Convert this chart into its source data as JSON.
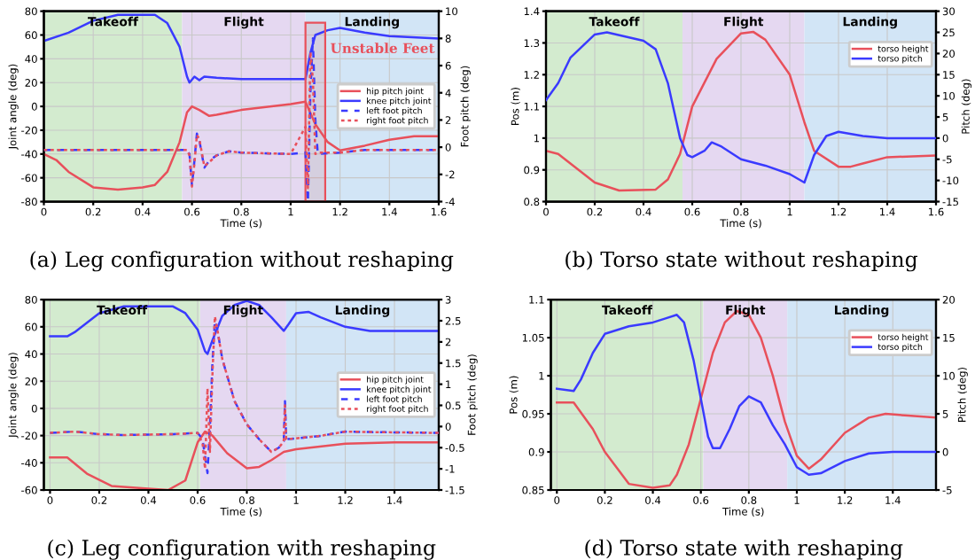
{
  "chart_data": [
    {
      "type": "line",
      "title": "(a) Leg configuration without reshaping",
      "xlabel": "Time (s)",
      "ylabel": "Joint angle (deg)",
      "y2label": "Foot pitch (deg)",
      "xlim": [
        0,
        1.6
      ],
      "xticks": [
        0,
        0.2,
        0.4,
        0.6,
        0.8,
        1,
        1.2,
        1.4,
        1.6
      ],
      "ylim": [
        -80,
        80
      ],
      "yticks": [
        -80,
        -60,
        -40,
        -20,
        0,
        20,
        40,
        60,
        80
      ],
      "y2lim": [
        -4,
        10
      ],
      "y2ticks": [
        -4,
        -2,
        0,
        2,
        4,
        6,
        8,
        10
      ],
      "grid": true,
      "legend": "right",
      "bands": [
        {
          "axis": "x",
          "from": 0,
          "to": 0.56,
          "label": "Takeoff",
          "color": "#d3ebcf"
        },
        {
          "axis": "x",
          "from": 0.56,
          "to": 1.06,
          "label": "Flight",
          "color": "#e5d8f1"
        },
        {
          "axis": "x",
          "from": 1.06,
          "to": 1.6,
          "label": "Landing",
          "color": "#d2e5f6"
        },
        {
          "axis": "x",
          "from": 1.06,
          "to": 1.14,
          "label": "Unstable Feet",
          "color": "#e8505b"
        }
      ],
      "series": [
        {
          "name": "hip pitch joint",
          "color": "#e8505b",
          "line_style": "solid",
          "x": [
            0,
            0.05,
            0.1,
            0.2,
            0.3,
            0.4,
            0.45,
            0.5,
            0.55,
            0.58,
            0.6,
            0.63,
            0.67,
            0.7,
            0.8,
            1.0,
            1.06,
            1.1,
            1.15,
            1.2,
            1.3,
            1.4,
            1.5,
            1.6
          ],
          "values": [
            -40,
            -45,
            -55,
            -68,
            -70,
            -68,
            -66,
            -55,
            -30,
            -5,
            0,
            -3,
            -8,
            -7,
            -3,
            2,
            4,
            -15,
            -30,
            -37,
            -33,
            -28,
            -25,
            -25
          ]
        },
        {
          "name": "knee pitch joint",
          "color": "#3a3aff",
          "line_style": "solid",
          "x": [
            0,
            0.1,
            0.2,
            0.3,
            0.45,
            0.5,
            0.55,
            0.58,
            0.59,
            0.61,
            0.63,
            0.65,
            0.7,
            0.8,
            1.0,
            1.06,
            1.08,
            1.1,
            1.15,
            1.2,
            1.3,
            1.4,
            1.6
          ],
          "values": [
            55,
            62,
            72,
            77,
            77,
            70,
            50,
            25,
            20,
            25,
            22,
            25,
            24,
            23,
            23,
            23,
            45,
            60,
            64,
            66,
            62,
            59,
            57
          ]
        },
        {
          "name": "left foot pitch",
          "color": "#3a3aff",
          "line_style": "dashed",
          "axis": "y2",
          "x": [
            0,
            0.3,
            0.58,
            0.59,
            0.6,
            0.61,
            0.62,
            0.63,
            0.65,
            0.67,
            0.7,
            0.75,
            0.8,
            1.0,
            1.06,
            1.07,
            1.08,
            1.09,
            1.1,
            1.11,
            1.2,
            1.3,
            1.6
          ],
          "values": [
            -0.2,
            -0.2,
            -0.2,
            -0.5,
            -2.8,
            -1,
            1,
            0.5,
            -1.5,
            -1,
            -0.6,
            -0.3,
            -0.4,
            -0.5,
            -0.4,
            -4,
            4,
            8,
            2,
            -0.5,
            -0.4,
            -0.2,
            -0.2
          ]
        },
        {
          "name": "right foot pitch",
          "color": "#e8505b",
          "line_style": "dashed",
          "axis": "y2",
          "x": [
            0,
            0.3,
            0.58,
            0.59,
            0.6,
            0.61,
            0.62,
            0.63,
            0.65,
            0.67,
            0.7,
            0.75,
            0.8,
            1.0,
            1.06,
            1.07,
            1.08,
            1.09,
            1.1,
            1.11,
            1.2,
            1.3,
            1.6
          ],
          "values": [
            -0.2,
            -0.2,
            -0.2,
            -0.6,
            -2.9,
            -1.2,
            0.9,
            0.6,
            -1.4,
            -1.1,
            -0.6,
            -0.3,
            -0.4,
            -0.5,
            1.5,
            -3,
            7,
            5,
            -0.5,
            -0.4,
            -0.4,
            -0.2,
            -0.2
          ]
        }
      ]
    },
    {
      "type": "line",
      "title": "(b) Torso state without reshaping",
      "xlabel": "Time (s)",
      "ylabel": "Pos (m)",
      "y2label": "Pitch (deg)",
      "xlim": [
        0,
        1.6
      ],
      "xticks": [
        0,
        0.2,
        0.4,
        0.6,
        0.8,
        1,
        1.2,
        1.4,
        1.6
      ],
      "ylim": [
        0.8,
        1.4
      ],
      "yticks": [
        0.8,
        0.9,
        1,
        1.1,
        1.2,
        1.3,
        1.4
      ],
      "y2lim": [
        -15,
        30
      ],
      "y2ticks": [
        -15,
        -10,
        -5,
        0,
        5,
        10,
        15,
        20,
        25,
        30
      ],
      "grid": true,
      "legend": "upper right",
      "bands": [
        {
          "axis": "x",
          "from": 0,
          "to": 0.56,
          "label": "Takeoff",
          "color": "#d3ebcf"
        },
        {
          "axis": "x",
          "from": 0.56,
          "to": 1.06,
          "label": "Flight",
          "color": "#e5d8f1"
        },
        {
          "axis": "x",
          "from": 1.06,
          "to": 1.6,
          "label": "Landing",
          "color": "#d2e5f6"
        }
      ],
      "series": [
        {
          "name": "torso height",
          "color": "#e8505b",
          "x": [
            0,
            0.05,
            0.1,
            0.2,
            0.3,
            0.45,
            0.5,
            0.55,
            0.6,
            0.7,
            0.8,
            0.85,
            0.9,
            1.0,
            1.06,
            1.1,
            1.2,
            1.25,
            1.3,
            1.4,
            1.6
          ],
          "values": [
            0.96,
            0.95,
            0.92,
            0.86,
            0.835,
            0.838,
            0.87,
            0.95,
            1.1,
            1.25,
            1.33,
            1.335,
            1.31,
            1.2,
            1.05,
            0.96,
            0.91,
            0.91,
            0.92,
            0.94,
            0.945
          ]
        },
        {
          "name": "torso pitch",
          "color": "#3a3aff",
          "axis": "y2",
          "x": [
            0,
            0.05,
            0.1,
            0.2,
            0.25,
            0.4,
            0.45,
            0.5,
            0.55,
            0.58,
            0.6,
            0.65,
            0.68,
            0.72,
            0.8,
            0.9,
            1.0,
            1.06,
            1.1,
            1.15,
            1.2,
            1.3,
            1.4,
            1.6
          ],
          "values": [
            9,
            13,
            19,
            24.5,
            25,
            23,
            21,
            13,
            0,
            -4,
            -4.5,
            -3,
            -1,
            -2,
            -5,
            -6.5,
            -8.5,
            -10.5,
            -4,
            0.5,
            1.5,
            0.5,
            0,
            0
          ]
        }
      ]
    },
    {
      "type": "line",
      "title": "(c) Leg configuration with reshaping",
      "xlabel": "Time (s)",
      "ylabel": "Joint angle (deg)",
      "y2label": "Foot pitch (deg)",
      "xlim": [
        -0.025,
        1.58
      ],
      "xticks": [
        0,
        0.2,
        0.4,
        0.6,
        0.8,
        1,
        1.2,
        1.4
      ],
      "ylim": [
        -60,
        80
      ],
      "yticks": [
        -60,
        -40,
        -20,
        0,
        20,
        40,
        60,
        80
      ],
      "y2lim": [
        -1.5,
        3
      ],
      "y2ticks": [
        -1.5,
        -1,
        -0.5,
        0,
        0.5,
        1,
        1.5,
        2,
        2.5,
        3
      ],
      "grid": true,
      "legend": "right",
      "bands": [
        {
          "axis": "x",
          "from": -0.025,
          "to": 0.61,
          "label": "Takeoff",
          "color": "#d3ebcf"
        },
        {
          "axis": "x",
          "from": 0.61,
          "to": 0.96,
          "label": "Flight",
          "color": "#e5d8f1"
        },
        {
          "axis": "x",
          "from": 0.96,
          "to": 1.58,
          "label": "Landing",
          "color": "#d2e5f6"
        }
      ],
      "series": [
        {
          "name": "hip pitch joint",
          "color": "#e8505b",
          "line_style": "solid",
          "x": [
            0,
            0.07,
            0.15,
            0.25,
            0.4,
            0.48,
            0.55,
            0.6,
            0.63,
            0.66,
            0.72,
            0.8,
            0.85,
            0.9,
            0.95,
            1.0,
            1.2,
            1.4,
            1.58
          ],
          "values": [
            -36,
            -36,
            -48,
            -57,
            -59,
            -60,
            -53,
            -25,
            -17,
            -20,
            -33,
            -44,
            -43,
            -38,
            -32,
            -30,
            -26,
            -25,
            -25
          ]
        },
        {
          "name": "knee pitch joint",
          "color": "#3a3aff",
          "line_style": "solid",
          "x": [
            0,
            0.07,
            0.1,
            0.2,
            0.3,
            0.5,
            0.55,
            0.6,
            0.63,
            0.64,
            0.66,
            0.7,
            0.75,
            0.8,
            0.85,
            0.9,
            0.95,
            0.97,
            1.0,
            1.05,
            1.1,
            1.2,
            1.3,
            1.4,
            1.58
          ],
          "values": [
            53,
            53,
            56,
            70,
            75,
            75,
            70,
            58,
            42,
            40,
            50,
            68,
            76,
            79,
            76,
            67,
            57,
            62,
            70,
            71,
            67,
            60,
            57,
            57,
            57
          ]
        },
        {
          "name": "left foot pitch",
          "color": "#3a3aff",
          "line_style": "dashed",
          "axis": "y2",
          "x": [
            0,
            0.1,
            0.2,
            0.3,
            0.5,
            0.6,
            0.62,
            0.64,
            0.65,
            0.66,
            0.67,
            0.68,
            0.7,
            0.75,
            0.8,
            0.85,
            0.9,
            0.93,
            0.95,
            0.955,
            0.96,
            1.0,
            1.1,
            1.2,
            1.3,
            1.58
          ],
          "values": [
            -0.15,
            -0.12,
            -0.18,
            -0.2,
            -0.18,
            -0.15,
            -0.3,
            -1.1,
            0,
            1.5,
            2.5,
            2.3,
            1.6,
            0.6,
            0.05,
            -0.3,
            -0.6,
            -0.5,
            -0.35,
            0.6,
            -0.3,
            -0.28,
            -0.22,
            -0.12,
            -0.13,
            -0.15
          ]
        },
        {
          "name": "right foot pitch",
          "color": "#e8505b",
          "line_style": "dashed",
          "axis": "y2",
          "x": [
            0,
            0.1,
            0.2,
            0.3,
            0.5,
            0.6,
            0.62,
            0.63,
            0.64,
            0.65,
            0.66,
            0.67,
            0.68,
            0.7,
            0.75,
            0.8,
            0.85,
            0.9,
            0.93,
            0.95,
            0.955,
            0.96,
            1.0,
            1.1,
            1.2,
            1.3,
            1.58
          ],
          "values": [
            -0.15,
            -0.12,
            -0.18,
            -0.2,
            -0.18,
            -0.15,
            -0.4,
            -1.0,
            0.9,
            -0.6,
            1.2,
            2.6,
            2.3,
            1.6,
            0.6,
            0.05,
            -0.3,
            -0.6,
            -0.5,
            -0.35,
            0.5,
            -0.3,
            -0.28,
            -0.22,
            -0.12,
            -0.13,
            -0.15
          ]
        }
      ]
    },
    {
      "type": "line",
      "title": "(d) Torso state with reshaping",
      "xlabel": "Time (s)",
      "ylabel": "Pos (m)",
      "y2label": "Pitch (deg)",
      "xlim": [
        -0.025,
        1.58
      ],
      "xticks": [
        0,
        0.2,
        0.4,
        0.6,
        0.8,
        1,
        1.2,
        1.4
      ],
      "ylim": [
        0.85,
        1.1
      ],
      "yticks": [
        0.85,
        0.9,
        0.95,
        1,
        1.05,
        1.1
      ],
      "y2lim": [
        -5,
        20
      ],
      "y2ticks": [
        -5,
        0,
        5,
        10,
        15,
        20
      ],
      "grid": true,
      "legend": "upper right",
      "bands": [
        {
          "axis": "x",
          "from": -0.025,
          "to": 0.61,
          "label": "Takeoff",
          "color": "#d3ebcf"
        },
        {
          "axis": "x",
          "from": 0.61,
          "to": 0.96,
          "label": "Flight",
          "color": "#e5d8f1"
        },
        {
          "axis": "x",
          "from": 0.96,
          "to": 1.58,
          "label": "Landing",
          "color": "#d2e5f6"
        }
      ],
      "series": [
        {
          "name": "torso height",
          "color": "#e8505b",
          "x": [
            0,
            0.07,
            0.15,
            0.2,
            0.3,
            0.4,
            0.47,
            0.5,
            0.55,
            0.6,
            0.65,
            0.7,
            0.75,
            0.8,
            0.85,
            0.9,
            0.95,
            1.0,
            1.05,
            1.1,
            1.2,
            1.3,
            1.37,
            1.45,
            1.58
          ],
          "values": [
            0.965,
            0.965,
            0.93,
            0.9,
            0.858,
            0.853,
            0.856,
            0.87,
            0.91,
            0.97,
            1.03,
            1.07,
            1.085,
            1.08,
            1.05,
            1.0,
            0.94,
            0.895,
            0.878,
            0.89,
            0.925,
            0.945,
            0.95,
            0.948,
            0.945
          ]
        },
        {
          "name": "torso pitch",
          "color": "#3a3aff",
          "axis": "y2",
          "x": [
            0,
            0.07,
            0.1,
            0.15,
            0.2,
            0.3,
            0.4,
            0.45,
            0.5,
            0.53,
            0.57,
            0.6,
            0.63,
            0.65,
            0.68,
            0.72,
            0.76,
            0.8,
            0.85,
            0.9,
            0.95,
            1.0,
            1.05,
            1.1,
            1.2,
            1.3,
            1.4,
            1.58
          ],
          "values": [
            8.3,
            8,
            9.5,
            13,
            15.5,
            16.5,
            17,
            17.5,
            18,
            17,
            12,
            7,
            2,
            0.5,
            0.5,
            3,
            6,
            7.3,
            6.5,
            3.5,
            1,
            -2,
            -3,
            -2.8,
            -1.2,
            -0.2,
            0,
            0
          ]
        }
      ]
    }
  ]
}
